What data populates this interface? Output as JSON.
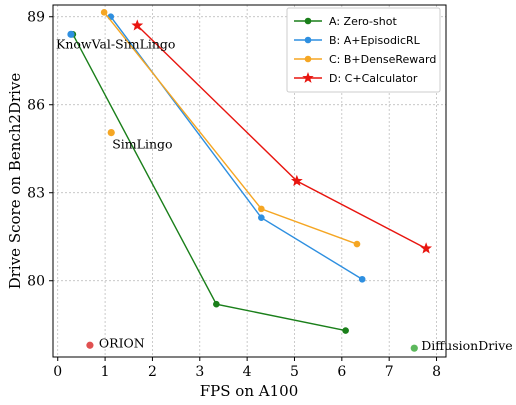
{
  "chart_data": {
    "type": "line",
    "xlabel": "FPS on A100",
    "ylabel": "Drive Score on Bench2Drive",
    "xlim": [
      -0.1,
      8.2
    ],
    "ylim": [
      77.4,
      89.4
    ],
    "xticks": [
      0,
      1,
      2,
      3,
      4,
      5,
      6,
      7,
      8
    ],
    "yticks": [
      80,
      83,
      86,
      89
    ],
    "grid": true,
    "legend_position": "top-right",
    "series": [
      {
        "name": "A: Zero-shot",
        "color": "#1a7f1a",
        "marker": "circle",
        "x": [
          0.32,
          3.35,
          6.08
        ],
        "y": [
          88.4,
          79.2,
          78.3
        ]
      },
      {
        "name": "B: A+EpisodicRL",
        "color": "#2e8fe0",
        "marker": "circle",
        "x": [
          1.12,
          4.3,
          6.43
        ],
        "y": [
          89.0,
          82.15,
          80.05
        ]
      },
      {
        "name": "C: B+DenseReward",
        "color": "#f5a623",
        "marker": "circle",
        "x": [
          0.98,
          4.3,
          6.32
        ],
        "y": [
          89.15,
          82.45,
          81.25
        ]
      },
      {
        "name": "D: C+Calculator",
        "color": "#e8150f",
        "marker": "star",
        "x": [
          1.68,
          5.05,
          7.78
        ],
        "y": [
          88.7,
          83.4,
          81.1
        ]
      }
    ],
    "points": [
      {
        "label": "KnowVal-SimLingo",
        "x": 0.28,
        "y": 88.4,
        "color": "#2e8fe0"
      },
      {
        "label": "SimLingo",
        "x": 1.13,
        "y": 85.05,
        "color": "#f5a623"
      },
      {
        "label": "ORION",
        "x": 0.68,
        "y": 77.8,
        "color": "#e05050"
      },
      {
        "label": "DiffusionDrive",
        "x": 7.53,
        "y": 77.7,
        "color": "#5cb85c"
      }
    ]
  }
}
